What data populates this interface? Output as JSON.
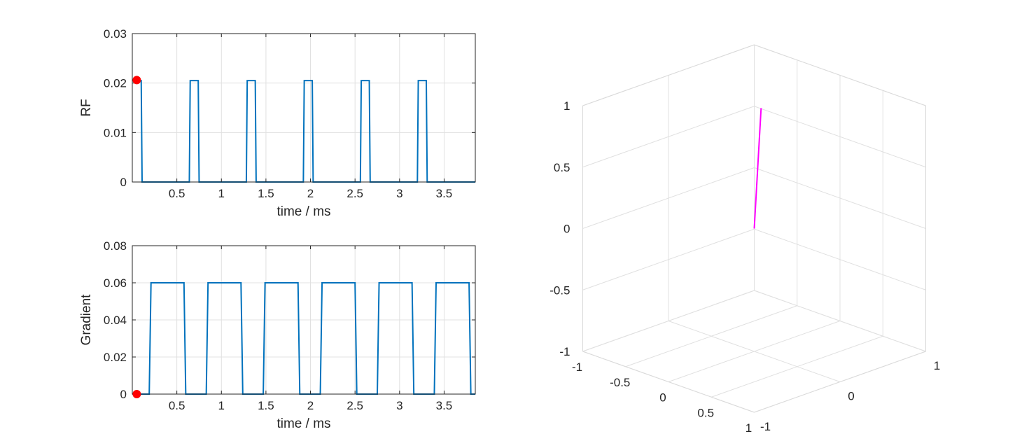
{
  "chart_data": [
    {
      "type": "line",
      "ylabel": "RF",
      "xlabel": "time / ms",
      "xlim": [
        0,
        3.85
      ],
      "ylim": [
        0,
        0.03
      ],
      "xticks": [
        0.5,
        1,
        1.5,
        2,
        2.5,
        3,
        3.5
      ],
      "xtick_labels": [
        "0.5",
        "1",
        "1.5",
        "2",
        "2.5",
        "3",
        "3.5"
      ],
      "yticks": [
        0,
        0.01,
        0.02,
        0.03
      ],
      "ytick_labels": [
        "0",
        "0.01",
        "0.02",
        "0.03"
      ],
      "grid": true,
      "line_color": "#0072BD",
      "series": [
        {
          "x": [
            0,
            0.1,
            0.11,
            0.64,
            0.65,
            0.74,
            0.75,
            1.28,
            1.29,
            1.38,
            1.39,
            1.92,
            1.93,
            2.02,
            2.03,
            2.56,
            2.57,
            2.66,
            2.67,
            3.2,
            3.21,
            3.3,
            3.31,
            3.85
          ],
          "y": [
            0.0205,
            0.0205,
            0,
            0,
            0.0205,
            0.0205,
            0,
            0,
            0.0205,
            0.0205,
            0,
            0,
            0.0205,
            0.0205,
            0,
            0,
            0.0205,
            0.0205,
            0,
            0,
            0.0205,
            0.0205,
            0,
            0
          ]
        }
      ],
      "marker": {
        "x": 0.05,
        "y": 0.0206,
        "color": "#FF0000"
      }
    },
    {
      "type": "line",
      "ylabel": "Gradient",
      "xlabel": "time / ms",
      "xlim": [
        0,
        3.85
      ],
      "ylim": [
        0,
        0.08
      ],
      "xticks": [
        0.5,
        1,
        1.5,
        2,
        2.5,
        3,
        3.5
      ],
      "xtick_labels": [
        "0.5",
        "1",
        "1.5",
        "2",
        "2.5",
        "3",
        "3.5"
      ],
      "yticks": [
        0,
        0.02,
        0.04,
        0.06,
        0.08
      ],
      "ytick_labels": [
        "0",
        "0.02",
        "0.04",
        "0.06",
        "0.08"
      ],
      "grid": true,
      "line_color": "#0072BD",
      "series": [
        {
          "x": [
            0,
            0.19,
            0.21,
            0.58,
            0.6,
            0.83,
            0.85,
            1.22,
            1.24,
            1.47,
            1.49,
            1.86,
            1.88,
            2.11,
            2.13,
            2.5,
            2.52,
            2.75,
            2.77,
            3.14,
            3.16,
            3.39,
            3.41,
            3.78,
            3.8,
            3.85
          ],
          "y": [
            0,
            0,
            0.06,
            0.06,
            0,
            0,
            0.06,
            0.06,
            0,
            0,
            0.06,
            0.06,
            0,
            0,
            0.06,
            0.06,
            0,
            0,
            0.06,
            0.06,
            0,
            0,
            0.06,
            0.06,
            0,
            0
          ]
        }
      ],
      "marker": {
        "x": 0.05,
        "y": 0,
        "color": "#FF0000"
      }
    },
    {
      "type": "line",
      "projection": "3d",
      "xlim": [
        -1,
        1
      ],
      "ylim": [
        -1,
        1
      ],
      "zlim": [
        -1,
        1
      ],
      "xticks": [
        -1,
        -0.5,
        0,
        0.5,
        1
      ],
      "xtick_labels": [
        "-1",
        "-0.5",
        "0",
        "0.5",
        "1"
      ],
      "yticks": [
        -1,
        0,
        1
      ],
      "ytick_labels": [
        "-1",
        "0",
        "1"
      ],
      "zticks": [
        -1,
        -0.5,
        0,
        0.5,
        1
      ],
      "ztick_labels": [
        "-1",
        "-0.5",
        "0",
        "0.5",
        "1"
      ],
      "grid": true,
      "line_color": "#FF00FF",
      "series": [
        {
          "x": [
            0,
            0.08
          ],
          "y": [
            0,
            0
          ],
          "z": [
            0,
            1
          ]
        }
      ]
    }
  ]
}
